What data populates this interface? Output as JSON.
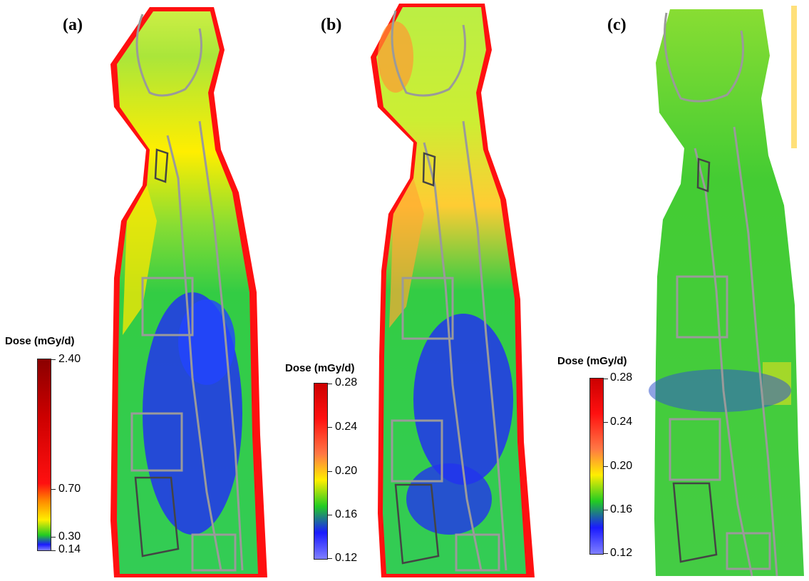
{
  "panels": [
    {
      "label": "(a)",
      "colorbar": {
        "title": "Dose (mGy/d)",
        "ticks": [
          "2.40",
          "0.70",
          "0.30",
          "0.14"
        ]
      }
    },
    {
      "label": "(b)",
      "colorbar": {
        "title": "Dose (mGy/d)",
        "ticks": [
          "0.28",
          "0.24",
          "0.20",
          "0.16",
          "0.12"
        ]
      }
    },
    {
      "label": "(c)",
      "colorbar": {
        "title": "Dose (mGy/d)",
        "ticks": [
          "0.28",
          "0.24",
          "0.20",
          "0.16",
          "0.12"
        ]
      }
    }
  ],
  "colors": {
    "low": "#7f7fff",
    "blue": "#1a1aff",
    "green": "#22cc22",
    "yellow": "#ffff00",
    "orange": "#ffa020",
    "red": "#ff1010",
    "darkred": "#8b0000",
    "contour_gray": "#9a9a9a",
    "contour_dark": "#444444"
  }
}
